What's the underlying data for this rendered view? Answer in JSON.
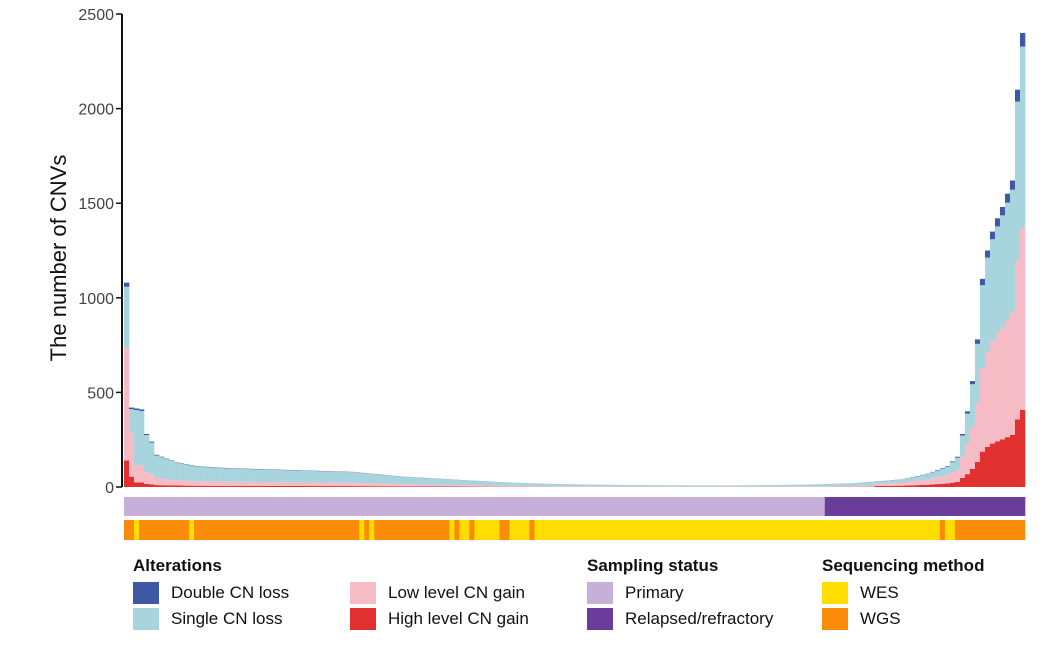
{
  "chart_data": {
    "type": "bar",
    "stacked": true,
    "title": "",
    "xlabel": "",
    "ylabel": "The number of CNVs",
    "ylim": [
      0,
      2500
    ],
    "yticks": [
      0,
      500,
      1000,
      1500,
      2000,
      2500
    ],
    "grid": false,
    "n_samples": 180,
    "series": [
      {
        "name": "Double CN loss",
        "color": "#3F58A6",
        "key": "double_loss"
      },
      {
        "name": "Single CN loss",
        "color": "#A8D5DD",
        "key": "single_loss"
      },
      {
        "name": "Low level CN gain",
        "color": "#F5BCC6",
        "key": "low_gain"
      },
      {
        "name": "High level CN gain",
        "color": "#E03030",
        "key": "high_gain"
      }
    ],
    "totals_profile": [
      [
        0,
        1080
      ],
      [
        1,
        420
      ],
      [
        3,
        410
      ],
      [
        4,
        280
      ],
      [
        5,
        240
      ],
      [
        6,
        170
      ],
      [
        10,
        130
      ],
      [
        14,
        110
      ],
      [
        20,
        100
      ],
      [
        30,
        92
      ],
      [
        45,
        80
      ],
      [
        55,
        55
      ],
      [
        65,
        40
      ],
      [
        75,
        25
      ],
      [
        85,
        16
      ],
      [
        100,
        10
      ],
      [
        120,
        8
      ],
      [
        135,
        12
      ],
      [
        145,
        20
      ],
      [
        155,
        40
      ],
      [
        160,
        70
      ],
      [
        164,
        110
      ],
      [
        166,
        160
      ],
      [
        168,
        400
      ],
      [
        169,
        560
      ],
      [
        170,
        780
      ],
      [
        171,
        1100
      ],
      [
        172,
        1250
      ],
      [
        173,
        1350
      ],
      [
        174,
        1420
      ],
      [
        175,
        1480
      ],
      [
        176,
        1550
      ],
      [
        177,
        1620
      ],
      [
        178,
        2100
      ],
      [
        179,
        2400
      ]
    ],
    "annotation_tracks": [
      {
        "name": "Sampling status",
        "segments": [
          {
            "category": "Primary",
            "start": 0,
            "end": 140
          },
          {
            "category": "Relapsed/refractory",
            "start": 140,
            "end": 180
          }
        ]
      },
      {
        "name": "Sequencing method",
        "segments": [
          {
            "category": "WGS",
            "start": 0,
            "end": 2
          },
          {
            "category": "WES",
            "start": 2,
            "end": 3
          },
          {
            "category": "WGS",
            "start": 3,
            "end": 13
          },
          {
            "category": "WES",
            "start": 13,
            "end": 14
          },
          {
            "category": "WGS",
            "start": 14,
            "end": 47
          },
          {
            "category": "WES",
            "start": 47,
            "end": 48
          },
          {
            "category": "WGS",
            "start": 48,
            "end": 49
          },
          {
            "category": "WES",
            "start": 49,
            "end": 50
          },
          {
            "category": "WGS",
            "start": 50,
            "end": 65
          },
          {
            "category": "WES",
            "start": 65,
            "end": 66
          },
          {
            "category": "WGS",
            "start": 66,
            "end": 67
          },
          {
            "category": "WES",
            "start": 67,
            "end": 69
          },
          {
            "category": "WGS",
            "start": 69,
            "end": 70
          },
          {
            "category": "WES",
            "start": 70,
            "end": 75
          },
          {
            "category": "WGS",
            "start": 75,
            "end": 77
          },
          {
            "category": "WES",
            "start": 77,
            "end": 81
          },
          {
            "category": "WGS",
            "start": 81,
            "end": 82
          },
          {
            "category": "WES",
            "start": 82,
            "end": 163
          },
          {
            "category": "WGS",
            "start": 163,
            "end": 164
          },
          {
            "category": "WES",
            "start": 164,
            "end": 166
          },
          {
            "category": "WGS",
            "start": 166,
            "end": 180
          }
        ]
      }
    ]
  },
  "legend": {
    "alterations": {
      "title": "Alterations",
      "items": [
        {
          "label": "Double CN loss",
          "color": "#3F58A6"
        },
        {
          "label": "Single CN loss",
          "color": "#A8D5DD"
        },
        {
          "label": "Low level CN gain",
          "color": "#F5BCC6"
        },
        {
          "label": "High level CN gain",
          "color": "#E03030"
        }
      ]
    },
    "sampling": {
      "title": "Sampling status",
      "items": [
        {
          "label": "Primary",
          "color": "#C6B0DA"
        },
        {
          "label": "Relapsed/refractory",
          "color": "#6A3D9A"
        }
      ]
    },
    "sequencing": {
      "title": "Sequencing method",
      "items": [
        {
          "label": "WES",
          "color": "#FFDD00"
        },
        {
          "label": "WGS",
          "color": "#FA8C0A"
        }
      ]
    }
  }
}
